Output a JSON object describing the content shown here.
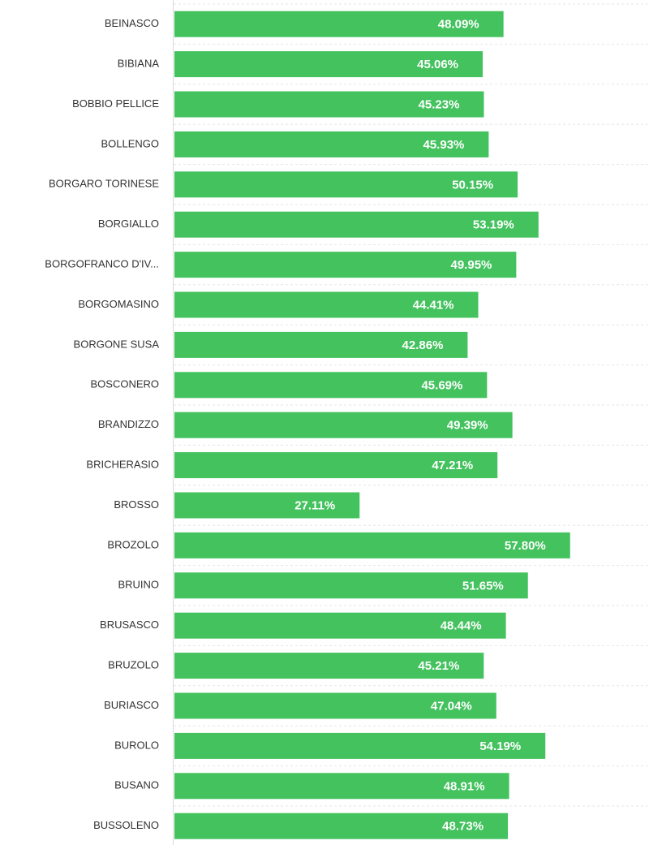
{
  "chart_data": {
    "type": "bar",
    "orientation": "horizontal",
    "title": "",
    "xlabel": "",
    "ylabel": "",
    "xlim": [
      0,
      69.3
    ],
    "grid": true,
    "categories": [
      "BEINASCO",
      "BIBIANA",
      "BOBBIO PELLICE",
      "BOLLENGO",
      "BORGARO TORINESE",
      "BORGIALLO",
      "BORGOFRANCO D'IV...",
      "BORGOMASINO",
      "BORGONE SUSA",
      "BOSCONERO",
      "BRANDIZZO",
      "BRICHERASIO",
      "BROSSO",
      "BROZOLO",
      "BRUINO",
      "BRUSASCO",
      "BRUZOLO",
      "BURIASCO",
      "BUROLO",
      "BUSANO",
      "BUSSOLENO"
    ],
    "values": [
      48.09,
      45.06,
      45.23,
      45.93,
      50.15,
      53.19,
      49.95,
      44.41,
      42.86,
      45.69,
      49.39,
      47.21,
      27.11,
      57.8,
      51.65,
      48.44,
      45.21,
      47.04,
      54.19,
      48.91,
      48.73
    ],
    "value_labels": [
      "48.09%",
      "45.06%",
      "45.23%",
      "45.93%",
      "50.15%",
      "53.19%",
      "49.95%",
      "44.41%",
      "42.86%",
      "45.69%",
      "49.39%",
      "47.21%",
      "27.11%",
      "57.80%",
      "51.65%",
      "48.44%",
      "45.21%",
      "47.04%",
      "54.19%",
      "48.91%",
      "48.73%"
    ],
    "bar_color": "#43c25e",
    "label_color": "#ffffff"
  }
}
